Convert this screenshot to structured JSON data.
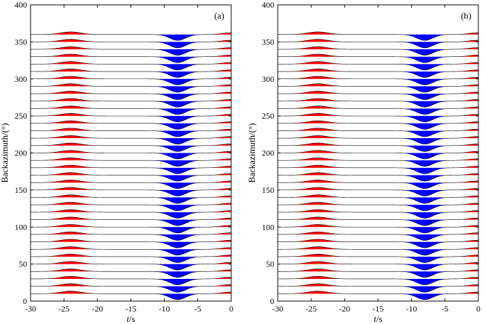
{
  "chart_data": [
    {
      "type": "wiggle-trace",
      "panel_label": "(a)",
      "ylabel": "Backazimuth/(°)",
      "xlabel_italic": "t",
      "xlabel_rest": "/s",
      "xlim": [
        -30,
        0
      ],
      "ylim": [
        0,
        400
      ],
      "xticks": [
        "-30",
        "-25",
        "-20",
        "-15",
        "-10",
        "-5",
        "0"
      ],
      "yticks": [
        "0",
        "50",
        "100",
        "150",
        "200",
        "250",
        "300",
        "350",
        "400"
      ],
      "backazimuths_deg": [
        10,
        20,
        30,
        40,
        50,
        60,
        70,
        80,
        90,
        100,
        110,
        120,
        130,
        140,
        150,
        160,
        170,
        180,
        190,
        200,
        210,
        220,
        230,
        240,
        250,
        260,
        270,
        280,
        290,
        300,
        310,
        320,
        330,
        340,
        350,
        360
      ],
      "pulses": [
        {
          "name": "main negative pulse",
          "center_s": -8.0,
          "width_s": 1.2,
          "amplitude_deg": 8,
          "fill": "#0000ff"
        },
        {
          "name": "precursor positive pulse",
          "center_s": -24.0,
          "width_s": 1.5,
          "amplitude_deg": 3.5,
          "fill": "#ff0000"
        },
        {
          "name": "late positive pulse",
          "center_s": -0.2,
          "width_s": 1.2,
          "amplitude_deg": 2.2,
          "fill": "#ff0000"
        }
      ],
      "colors": {
        "negative": "#0000ff",
        "positive": "#ff0000",
        "trace": "#000000"
      }
    },
    {
      "type": "wiggle-trace",
      "panel_label": "(b)",
      "ylabel": "Backazimuth/(°)",
      "xlabel_italic": "t",
      "xlabel_rest": "/s",
      "xlim": [
        -30,
        0
      ],
      "ylim": [
        0,
        400
      ],
      "xticks": [
        "-30",
        "-25",
        "-20",
        "-15",
        "-10",
        "-5",
        "0"
      ],
      "yticks": [
        "0",
        "50",
        "100",
        "150",
        "200",
        "250",
        "300",
        "350",
        "400"
      ],
      "backazimuths_deg": [
        10,
        20,
        30,
        40,
        50,
        60,
        70,
        80,
        90,
        100,
        110,
        120,
        130,
        140,
        150,
        160,
        170,
        180,
        190,
        200,
        210,
        220,
        230,
        240,
        250,
        260,
        270,
        280,
        290,
        300,
        310,
        320,
        330,
        340,
        350,
        360
      ],
      "pulses": [
        {
          "name": "main negative pulse",
          "center_s": -8.0,
          "width_s": 1.2,
          "amplitude_deg": 8,
          "fill": "#0000ff"
        },
        {
          "name": "precursor positive pulse",
          "center_s": -24.0,
          "width_s": 1.5,
          "amplitude_deg": 3.5,
          "fill": "#ff0000"
        },
        {
          "name": "late positive pulse",
          "center_s": -0.2,
          "width_s": 1.2,
          "amplitude_deg": 2.2,
          "fill": "#ff0000"
        }
      ],
      "colors": {
        "negative": "#0000ff",
        "positive": "#ff0000",
        "trace": "#000000"
      }
    }
  ]
}
